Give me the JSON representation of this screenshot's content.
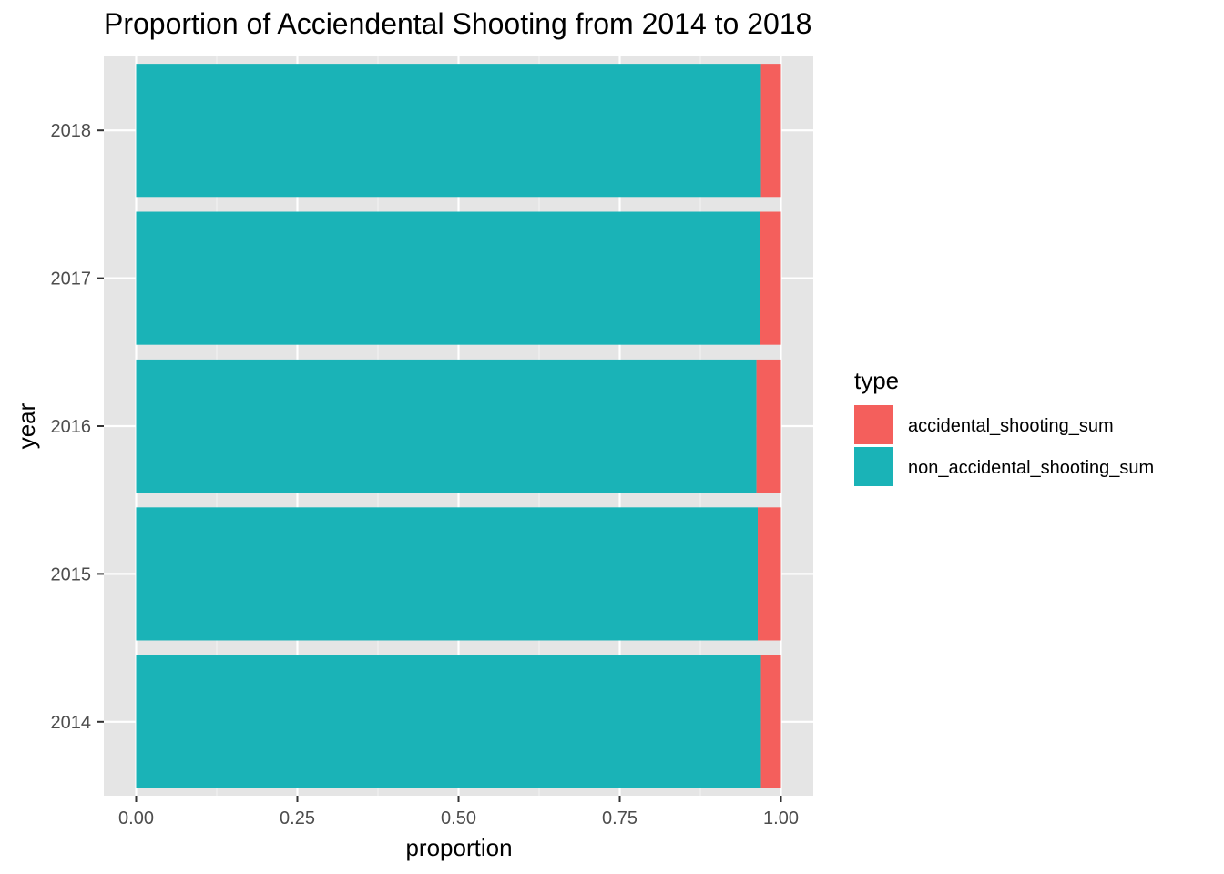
{
  "chart_data": {
    "type": "bar",
    "orientation": "horizontal",
    "stacked": true,
    "title": "Proportion of Acciendental Shooting from 2014 to 2018",
    "xlabel": "proportion",
    "ylabel": "year",
    "xlim": [
      0,
      1
    ],
    "xticks": [
      "0.00",
      "0.25",
      "0.50",
      "0.75",
      "1.00"
    ],
    "xtick_values": [
      0,
      0.25,
      0.5,
      0.75,
      1.0
    ],
    "categories": [
      "2014",
      "2015",
      "2016",
      "2017",
      "2018"
    ],
    "series": [
      {
        "name": "non_accidental_shooting_sum",
        "color": "#1AB3B7",
        "values": [
          0.969,
          0.964,
          0.962,
          0.968,
          0.969
        ]
      },
      {
        "name": "accidental_shooting_sum",
        "color": "#F45F5C",
        "values": [
          0.031,
          0.036,
          0.038,
          0.032,
          0.031
        ]
      }
    ],
    "legend": {
      "title": "type",
      "position": "right",
      "entries": [
        {
          "label": "accidental_shooting_sum",
          "color": "#F45F5C"
        },
        {
          "label": "non_accidental_shooting_sum",
          "color": "#1AB3B7"
        }
      ]
    },
    "grid": true,
    "panel_background": "#EBEBEB"
  }
}
